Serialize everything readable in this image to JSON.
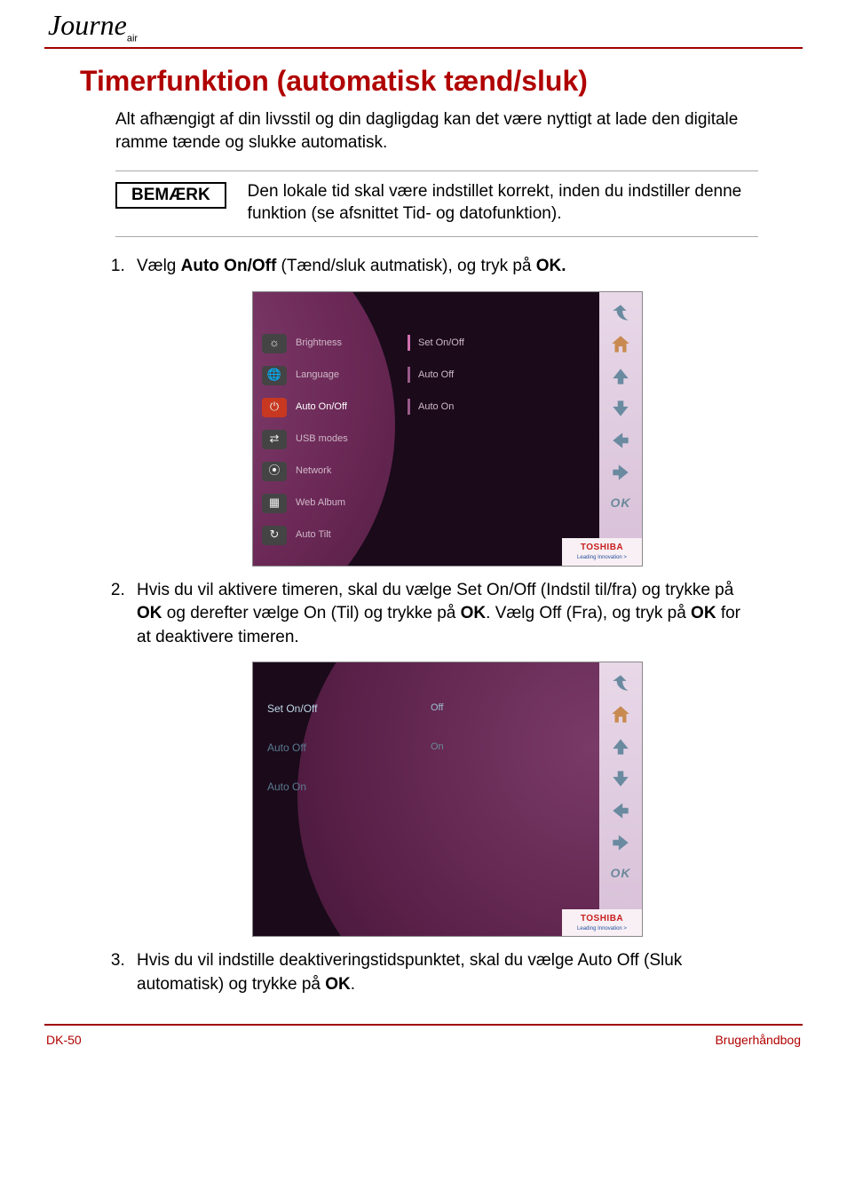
{
  "brand": {
    "main": "Journe",
    "sub": "air"
  },
  "title": "Timerfunktion (automatisk tænd/sluk)",
  "intro": "Alt afhængigt af din livsstil og din dagligdag kan det være nyttigt at lade den digitale ramme tænde og slukke automatisk.",
  "note": {
    "badge": "BEMÆRK",
    "text": "Den lokale tid skal være indstillet korrekt, inden du indstiller denne funktion (se afsnittet Tid- og datofunktion)."
  },
  "steps": {
    "s1_pre": "Vælg ",
    "s1_b1": "Auto On/Off",
    "s1_mid": " (Tænd/sluk autmatisk), og tryk på ",
    "s1_b2": "OK.",
    "s2_pre": "Hvis du vil aktivere timeren, skal du vælge Set On/Off (Indstil til/fra) og trykke på ",
    "s2_b1": "OK",
    "s2_mid1": " og derefter vælge On (Til) og trykke på ",
    "s2_b2": "OK",
    "s2_mid2": ". Vælg Off (Fra), og tryk på ",
    "s2_b3": "OK",
    "s2_post": " for at deaktivere timeren.",
    "s3_pre": "Hvis du vil indstille deaktiveringstidspunktet, skal du vælge Auto Off (Sluk automatisk) og trykke på ",
    "s3_b1": "OK",
    "s3_post": "."
  },
  "screenshot1": {
    "menu": [
      {
        "label": "Brightness",
        "sel": false,
        "glyph": "☼"
      },
      {
        "label": "Language",
        "sel": false,
        "glyph": "🌐"
      },
      {
        "label": "Auto On/Off",
        "sel": true,
        "glyph": "⏻"
      },
      {
        "label": "USB modes",
        "sel": false,
        "glyph": "⇄"
      },
      {
        "label": "Network",
        "sel": false,
        "glyph": "⦿"
      },
      {
        "label": "Web Album",
        "sel": false,
        "glyph": "▦"
      },
      {
        "label": "Auto Tilt",
        "sel": false,
        "glyph": "↻"
      }
    ],
    "submenu": [
      {
        "label": "Set On/Off",
        "sel": true
      },
      {
        "label": "Auto Off",
        "sel": false
      },
      {
        "label": "Auto On",
        "sel": false
      }
    ]
  },
  "screenshot2": {
    "left": [
      {
        "label": "Set On/Off",
        "sel": true
      },
      {
        "label": "Auto Off",
        "sel": false
      },
      {
        "label": "Auto On",
        "sel": false
      }
    ],
    "right": [
      {
        "label": "Off",
        "sel": true
      },
      {
        "label": "On",
        "sel": false
      }
    ]
  },
  "nav": {
    "ok": "OK"
  },
  "toshiba": {
    "brand": "TOSHIBA",
    "tag": "Leading Innovation >"
  },
  "footer": {
    "left": "DK-50",
    "right": "Brugerhåndbog"
  },
  "colors": {
    "heading": "#b00000",
    "rule": "#a00000",
    "screenshot_bg": "#1a0a1a",
    "circle_grad": "#6b2856",
    "nav_strip": "#e0c8de"
  }
}
